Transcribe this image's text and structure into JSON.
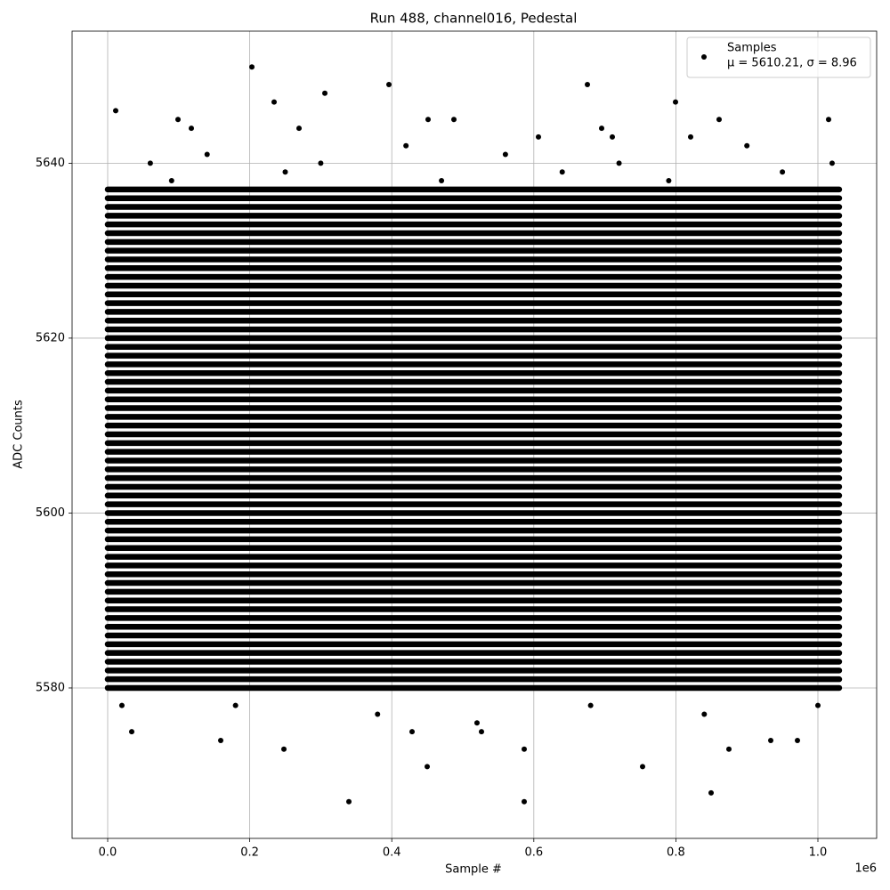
{
  "chart_data": {
    "type": "scatter",
    "title": "Run 488, channel016, Pedestal",
    "x_label": "Sample #",
    "y_label": "ADC Counts",
    "x_offset_label": "1e6",
    "xlim": [
      -50125,
      1082707
    ],
    "ylim": [
      5562.8,
      5655.1
    ],
    "xticks": [
      {
        "value": 0,
        "label": "0.0"
      },
      {
        "value": 200000,
        "label": "0.2"
      },
      {
        "value": 400000,
        "label": "0.4"
      },
      {
        "value": 600000,
        "label": "0.6"
      },
      {
        "value": 800000,
        "label": "0.8"
      },
      {
        "value": 1000000,
        "label": "1.0"
      }
    ],
    "yticks": [
      5580,
      5600,
      5620,
      5640
    ],
    "grid": true,
    "legend": "upper right",
    "series": [
      {
        "name": "Samples",
        "stats_label": "μ = 5610.21, σ = 8.96",
        "color": "#000000",
        "x": [
          11278,
          203008,
          305764,
          395990,
          675439,
          234336,
          799499,
          339599,
          586466,
          849624,
          248120,
          159148,
          449875,
          753133,
          586466,
          874687,
          1015038,
          860902,
          451128,
          487469,
          98997,
          117794,
          269424,
          695489,
          710526,
          820802,
          606516,
          526316,
          428571,
          971178,
          933584,
          33835,
          60000,
          140000,
          300000,
          420000,
          560000,
          720000,
          900000,
          1020000,
          20000,
          180000,
          380000,
          520000,
          680000,
          840000,
          1000000,
          90000,
          250000,
          470000,
          640000,
          790000,
          950000
        ],
        "y": [
          5646,
          5651,
          5648,
          5649,
          5649,
          5647,
          5647,
          5567,
          5567,
          5568,
          5573,
          5574,
          5571,
          5571,
          5573,
          5573,
          5645,
          5645,
          5645,
          5645,
          5645,
          5644,
          5644,
          5644,
          5643,
          5643,
          5643,
          5575,
          5575,
          5574,
          5574,
          5575,
          5640,
          5641,
          5640,
          5642,
          5641,
          5640,
          5642,
          5640,
          5578,
          5578,
          5577,
          5576,
          5578,
          5577,
          5578,
          5638,
          5639,
          5638,
          5639,
          5638,
          5639
        ]
      }
    ],
    "dense_rows": [
      5580,
      5581,
      5582,
      5583,
      5584,
      5585,
      5586,
      5587,
      5588,
      5589,
      5590,
      5591,
      5592,
      5593,
      5594,
      5595,
      5596,
      5597,
      5598,
      5599,
      5600,
      5601,
      5602,
      5603,
      5604,
      5605,
      5606,
      5607,
      5608,
      5609,
      5610,
      5611,
      5612,
      5613,
      5614,
      5615,
      5616,
      5617,
      5618,
      5619,
      5620,
      5621,
      5622,
      5623,
      5624,
      5625,
      5626,
      5627,
      5628,
      5629,
      5630,
      5631,
      5632,
      5633,
      5634,
      5635,
      5636,
      5637
    ],
    "dense_rows_x": [
      0,
      1030000
    ]
  }
}
